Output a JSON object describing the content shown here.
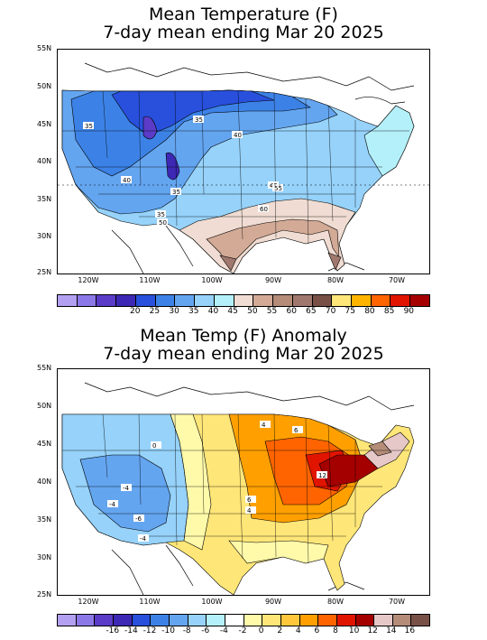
{
  "panels": [
    {
      "title_line1": "Mean Temperature (F)",
      "title_line2": "7-day mean ending Mar 20 2025",
      "lat_labels": [
        "55N",
        "50N",
        "45N",
        "40N",
        "35N",
        "30N",
        "25N"
      ],
      "lon_labels": [
        "120W",
        "110W",
        "100W",
        "90W",
        "80W",
        "70W"
      ],
      "colorbar": {
        "colors": [
          "#b4a0f0",
          "#8c78e6",
          "#5a3cc8",
          "#3c28b4",
          "#2850dc",
          "#3c82e6",
          "#64a5f0",
          "#96d2fa",
          "#b4f0fa",
          "#f0dcd2",
          "#d2aa96",
          "#b48c78",
          "#a0786e",
          "#785046",
          "#ffe678",
          "#ffb400",
          "#ff6400",
          "#e11400",
          "#a50000"
        ],
        "labels": [
          "20",
          "25",
          "30",
          "35",
          "40",
          "45",
          "50",
          "55",
          "60",
          "65",
          "70",
          "75",
          "80",
          "85",
          "90"
        ]
      },
      "contour_labels": [
        "35",
        "35",
        "35",
        "40",
        "40",
        "35",
        "45",
        "50",
        "55",
        "60"
      ]
    },
    {
      "title_line1": "Mean Temp (F) Anomaly",
      "title_line2": "7-day mean ending Mar 20 2025",
      "lat_labels": [
        "55N",
        "50N",
        "45N",
        "40N",
        "35N",
        "30N",
        "25N"
      ],
      "lon_labels": [
        "120W",
        "110W",
        "100W",
        "90W",
        "80W",
        "70W"
      ],
      "colorbar": {
        "colors": [
          "#b4a0f0",
          "#8c78e6",
          "#5a3cc8",
          "#3c28b4",
          "#2850dc",
          "#3c82e6",
          "#64a5f0",
          "#96d2fa",
          "#b4f0fa",
          "#ffffff",
          "#fffaaa",
          "#ffe678",
          "#ffc83c",
          "#ffa000",
          "#ff6400",
          "#e11400",
          "#a50000",
          "#e6c8c8",
          "#b48c78",
          "#785046"
        ],
        "labels": [
          "-16",
          "-14",
          "-12",
          "-10",
          "-8",
          "-6",
          "-4",
          "-2",
          "0",
          "2",
          "4",
          "6",
          "8",
          "10",
          "12",
          "14",
          "16"
        ]
      },
      "contour_labels": [
        "-4",
        "-4",
        "-6",
        "-4",
        "4",
        "6",
        "6",
        "4",
        "12",
        "0"
      ]
    }
  ]
}
